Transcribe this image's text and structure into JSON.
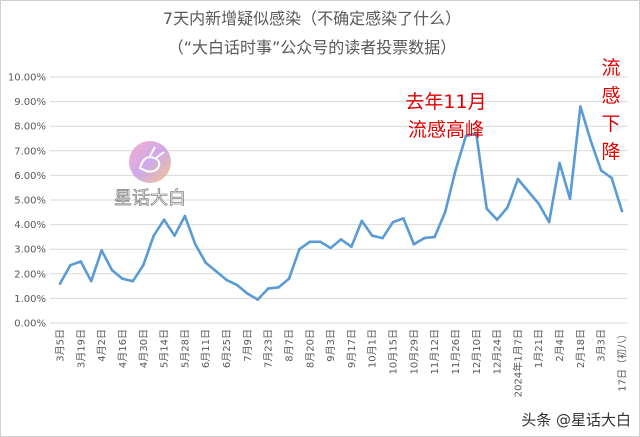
{
  "chart_data": {
    "type": "line",
    "title": "7天内新增疑似感染（不确定感染了什么）",
    "subtitle": "（“大白话时事”公众号的读者投票数据）",
    "xlabel": "",
    "ylabel": "",
    "ylim": [
      0,
      10
    ],
    "y_unit": "%",
    "y_ticks": [
      "0.00%",
      "1.00%",
      "2.00%",
      "3.00%",
      "4.00%",
      "5.00%",
      "6.00%",
      "7.00%",
      "8.00%",
      "9.00%",
      "10.00%"
    ],
    "x_tick_labels": [
      "3月5日",
      "3月19日",
      "4月2日",
      "4月16日",
      "4月30日",
      "5月14日",
      "5月28日",
      "6月11日",
      "6月25日",
      "7月9日",
      "7月23日",
      "8月7日",
      "8月20日",
      "9月3日",
      "9月17日",
      "10月1日",
      "10月15日",
      "10月29日",
      "11月12日",
      "11月26日",
      "12月10日",
      "12月24日",
      "2024年1月7日",
      "1月21日",
      "2月4日",
      "2月18日",
      "3月3日",
      "17日（初八）"
    ],
    "grid": true,
    "legend": "none",
    "line_color": "#5b9bd5",
    "series": [
      {
        "values": [
          1.6,
          2.35,
          2.5,
          1.7,
          2.95,
          2.15,
          1.8,
          1.7,
          2.35,
          3.55,
          4.2,
          3.55,
          4.35,
          3.2,
          2.45,
          2.1,
          1.75,
          1.55,
          1.2,
          0.95,
          1.4,
          1.45,
          1.8,
          3.0,
          3.3,
          3.3,
          3.05,
          3.4,
          3.1,
          4.15,
          3.55,
          3.45,
          4.1,
          4.25,
          3.2,
          3.45,
          3.5,
          4.5,
          6.2,
          7.6,
          7.7,
          4.65,
          4.2,
          4.7,
          5.85,
          5.35,
          4.85,
          4.1,
          6.5,
          5.05,
          8.8,
          7.4,
          6.2,
          5.9,
          4.55
        ]
      }
    ],
    "annotations": [
      "去年11月",
      "流感高峰",
      "流",
      "感",
      "下",
      "降"
    ]
  },
  "watermarks": {
    "center_logo": "星话大白",
    "bottom": "头条 @星话大白"
  }
}
